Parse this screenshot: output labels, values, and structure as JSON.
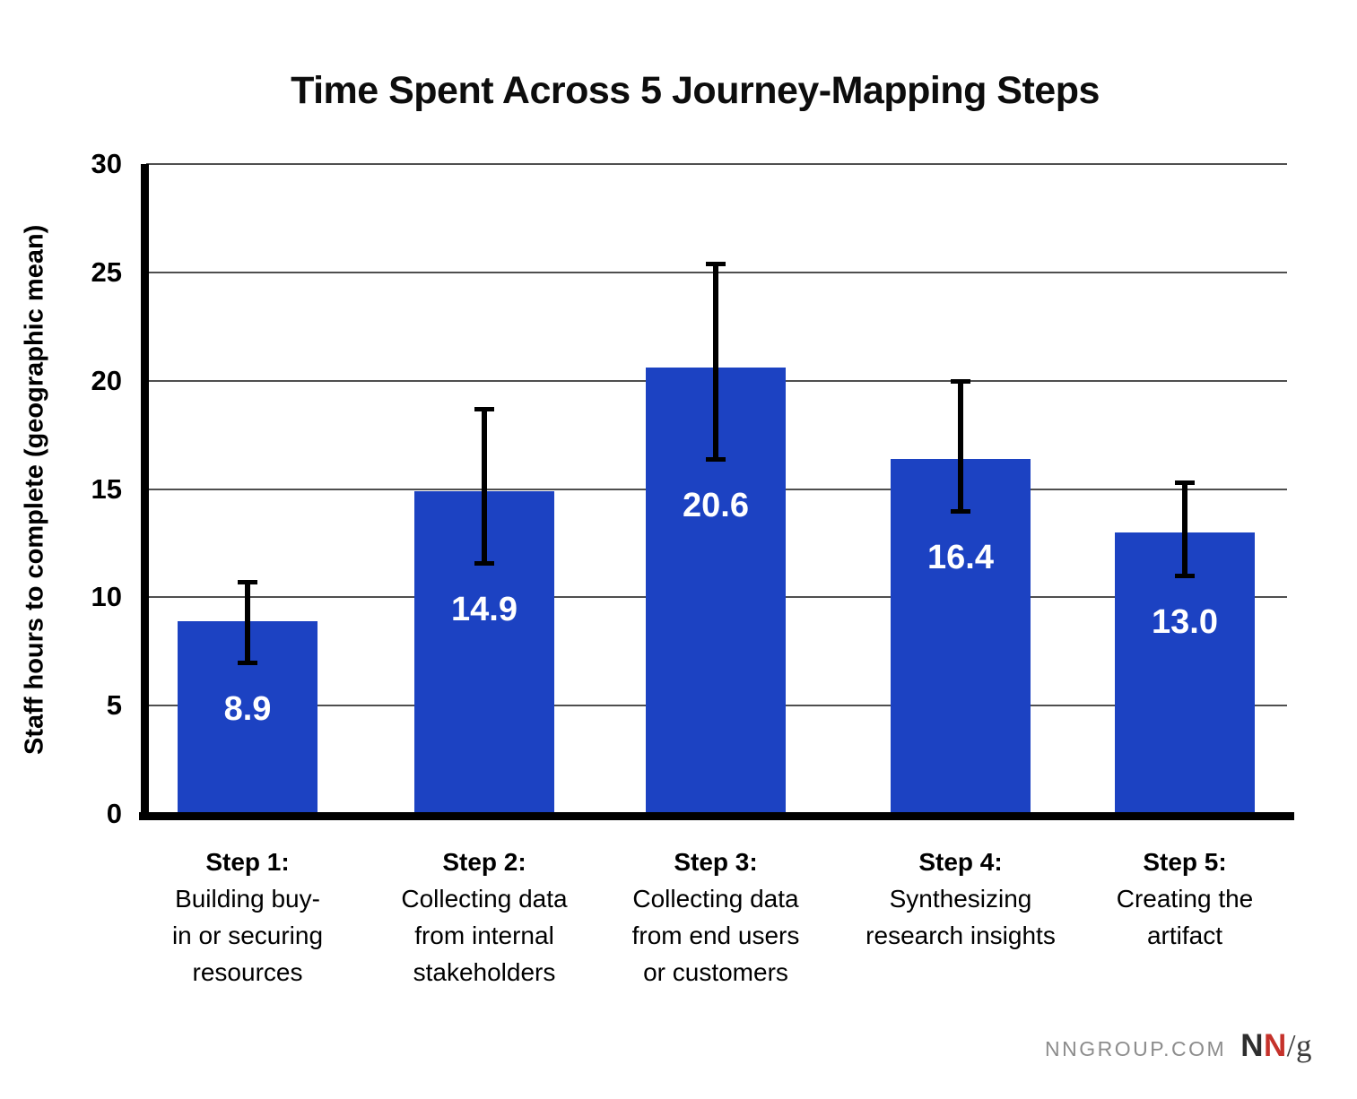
{
  "title": "Time Spent Across 5 Journey-Mapping Steps",
  "colors": {
    "bar": "#1c42c2",
    "bar_value_label": "#ffffff",
    "gridline": "#4f4f4f",
    "axis": "#000000",
    "error_bar": "#000000",
    "title_text": "#0d0d0d",
    "footer_site": "#8c8c8c",
    "logo_n_dark": "#2e2e2e",
    "logo_n_red": "#c5322b",
    "logo_slash_g": "#3c3c3c"
  },
  "chart_data": {
    "type": "bar",
    "title": "Time Spent Across 5 Journey-Mapping Steps",
    "xlabel": "",
    "ylabel": "Staff hours to complete (geographic mean)",
    "ylim": [
      0,
      30
    ],
    "yticks": [
      0,
      5,
      10,
      15,
      20,
      25,
      30
    ],
    "grid": "horizontal",
    "legend": "none",
    "categories": [
      {
        "step": "Step 1:",
        "lines": [
          "Building buy-",
          "in or securing",
          "resources"
        ]
      },
      {
        "step": "Step 2:",
        "lines": [
          "Collecting data",
          "from internal",
          "stakeholders"
        ]
      },
      {
        "step": "Step 3:",
        "lines": [
          "Collecting data",
          "from end users",
          "or customers"
        ]
      },
      {
        "step": "Step 4:",
        "lines": [
          "Synthesizing",
          "research insights"
        ]
      },
      {
        "step": "Step 5:",
        "lines": [
          "Creating the",
          "artifact"
        ]
      }
    ],
    "values": [
      8.9,
      14.9,
      20.6,
      16.4,
      13.0
    ],
    "value_labels": [
      "8.9",
      "14.9",
      "20.6",
      "16.4",
      "13.0"
    ],
    "error_bars": [
      {
        "low": 7.0,
        "high": 10.7
      },
      {
        "low": 11.6,
        "high": 18.7
      },
      {
        "low": 16.4,
        "high": 25.4
      },
      {
        "low": 14.0,
        "high": 20.0
      },
      {
        "low": 11.0,
        "high": 15.3
      }
    ]
  },
  "footer": {
    "site": "NNGROUP.COM",
    "logo_n1": "N",
    "logo_n2": "N",
    "logo_slash_g": "/g"
  }
}
